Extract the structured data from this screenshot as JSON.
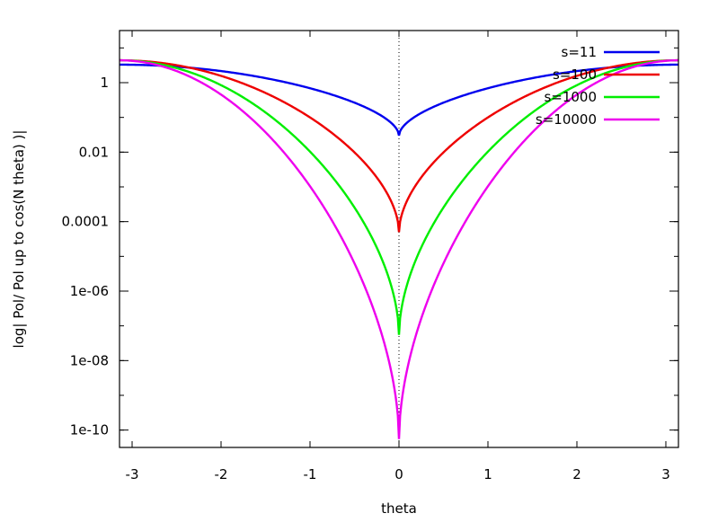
{
  "chart_data": {
    "type": "line",
    "title": "",
    "xlabel": "theta",
    "ylabel": "log| Pol/ Pol up to cos(N theta) )|",
    "xlim": [
      -3.14159,
      3.14159
    ],
    "ylim_log10": [
      -10.5,
      1.5
    ],
    "y_scale": "log",
    "x_ticks": [
      {
        "value": -3,
        "label": "-3"
      },
      {
        "value": -2,
        "label": "-2"
      },
      {
        "value": -1,
        "label": "-1"
      },
      {
        "value": 0,
        "label": "0"
      },
      {
        "value": 1,
        "label": "1"
      },
      {
        "value": 2,
        "label": "2"
      },
      {
        "value": 3,
        "label": "3"
      }
    ],
    "y_ticks": [
      {
        "value": 1,
        "label": "1"
      },
      {
        "value": 0.01,
        "label": "0.01"
      },
      {
        "value": 0.0001,
        "label": "0.0001"
      },
      {
        "value": 1e-06,
        "label": "1e-06"
      },
      {
        "value": 1e-08,
        "label": "1e-08"
      },
      {
        "value": 1e-10,
        "label": "1e-10"
      }
    ],
    "reference_line": {
      "x": 0,
      "style": "dotted"
    },
    "legend_position": "top-right",
    "grid": false,
    "series": [
      {
        "name": "s=11",
        "color": "#0000ee",
        "min_value": 0.03,
        "edge_value": 3.3
      },
      {
        "name": "s=100",
        "color": "#ee0000",
        "min_value": 5e-05,
        "edge_value": 4.4
      },
      {
        "name": "s=1000",
        "color": "#00ee00",
        "min_value": 5.5e-08,
        "edge_value": 4.4
      },
      {
        "name": "s=10000",
        "color": "#ee00ee",
        "min_value": 5.5e-11,
        "edge_value": 4.4
      }
    ]
  }
}
